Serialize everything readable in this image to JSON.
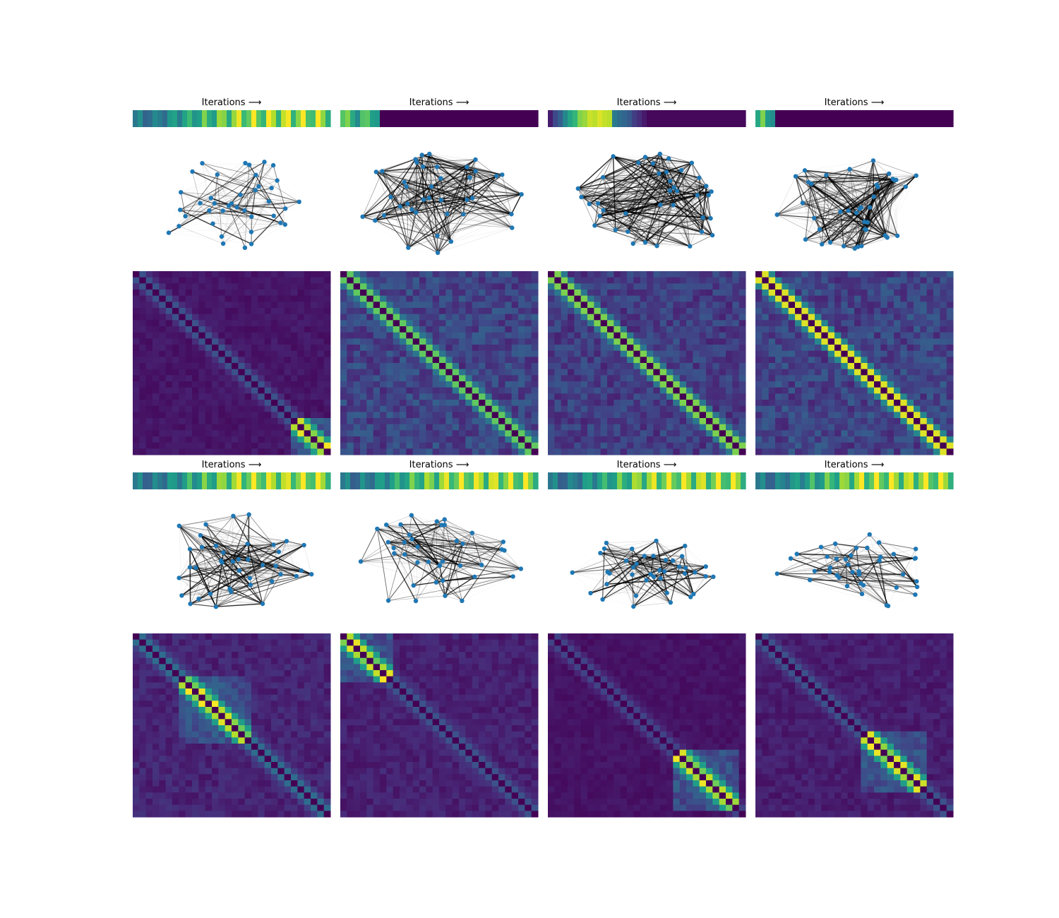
{
  "figure": {
    "title_label": "Iterations",
    "title_arrow": "⟶"
  },
  "colormap": "viridis",
  "colors": {
    "node": "#1f77b4",
    "edge": "#000000",
    "background": "#ffffff"
  },
  "chart_data": [
    {
      "id": "top-1",
      "type": "heatmap",
      "strip": {
        "pattern": "high-oscillating",
        "n": 40
      },
      "graph": {
        "n_nodes": 40,
        "layout": "loose",
        "edge_density": 0.25
      },
      "matrix": {
        "n": 30,
        "base": 0.06,
        "diag": 0.25,
        "hotspot": {
          "start": 0.8,
          "end": 1.0,
          "peak": 1.0
        }
      }
    },
    {
      "id": "top-2",
      "type": "heatmap",
      "strip": {
        "pattern": "drop",
        "n": 40,
        "cut": 0.2
      },
      "graph": {
        "n_nodes": 40,
        "layout": "dense",
        "edge_density": 0.8
      },
      "matrix": {
        "n": 30,
        "base": 0.2,
        "diag": 0.75,
        "hotspot": null
      }
    },
    {
      "id": "top-3",
      "type": "heatmap",
      "strip": {
        "pattern": "rise-fall",
        "n": 40,
        "cut": 0.5
      },
      "graph": {
        "n_nodes": 40,
        "layout": "dense",
        "edge_density": 0.8
      },
      "matrix": {
        "n": 30,
        "base": 0.18,
        "diag": 0.8,
        "hotspot": null
      }
    },
    {
      "id": "top-4",
      "type": "heatmap",
      "strip": {
        "pattern": "drop",
        "n": 40,
        "cut": 0.08
      },
      "graph": {
        "n_nodes": 40,
        "layout": "dense",
        "edge_density": 0.85
      },
      "matrix": {
        "n": 30,
        "base": 0.2,
        "diag": 0.95,
        "hotspot": null
      }
    },
    {
      "id": "bottom-1",
      "type": "heatmap",
      "strip": {
        "pattern": "high-oscillating",
        "n": 40
      },
      "graph": {
        "n_nodes": 40,
        "layout": "medium",
        "edge_density": 0.5
      },
      "matrix": {
        "n": 30,
        "base": 0.1,
        "diag": 0.35,
        "hotspot": {
          "start": 0.25,
          "end": 0.6,
          "peak": 1.0
        }
      }
    },
    {
      "id": "bottom-2",
      "type": "heatmap",
      "strip": {
        "pattern": "high-oscillating",
        "n": 40
      },
      "graph": {
        "n_nodes": 40,
        "layout": "medium",
        "edge_density": 0.45
      },
      "matrix": {
        "n": 30,
        "base": 0.09,
        "diag": 0.25,
        "hotspot": {
          "start": 0.0,
          "end": 0.25,
          "peak": 1.0
        }
      }
    },
    {
      "id": "bottom-3",
      "type": "heatmap",
      "strip": {
        "pattern": "high-oscillating",
        "n": 40
      },
      "graph": {
        "n_nodes": 40,
        "layout": "compact",
        "edge_density": 0.35
      },
      "matrix": {
        "n": 30,
        "base": 0.05,
        "diag": 0.2,
        "hotspot": {
          "start": 0.65,
          "end": 0.95,
          "peak": 1.0
        }
      }
    },
    {
      "id": "bottom-4",
      "type": "heatmap",
      "strip": {
        "pattern": "high-oscillating",
        "n": 40
      },
      "graph": {
        "n_nodes": 40,
        "layout": "compact",
        "edge_density": 0.3
      },
      "matrix": {
        "n": 30,
        "base": 0.08,
        "diag": 0.25,
        "hotspot": {
          "start": 0.55,
          "end": 0.85,
          "peak": 1.0
        }
      }
    }
  ]
}
